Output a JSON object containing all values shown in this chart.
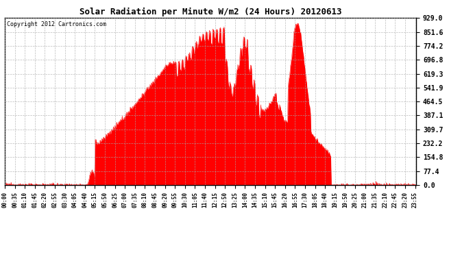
{
  "title": "Solar Radiation per Minute W/m2 (24 Hours) 20120613",
  "copyright": "Copyright 2012 Cartronics.com",
  "fill_color": "#FF0000",
  "line_color": "#FF0000",
  "background_color": "#FFFFFF",
  "grid_color": "#AAAAAA",
  "dashed_line_color": "#FF0000",
  "yticks": [
    0.0,
    77.4,
    154.8,
    232.2,
    309.7,
    387.1,
    464.5,
    541.9,
    619.3,
    696.8,
    774.2,
    851.6,
    929.0
  ],
  "ymax": 929.0,
  "ymin": 0.0,
  "num_minutes": 1440,
  "tick_interval": 35,
  "figwidth": 6.9,
  "figheight": 3.75,
  "dpi": 100
}
